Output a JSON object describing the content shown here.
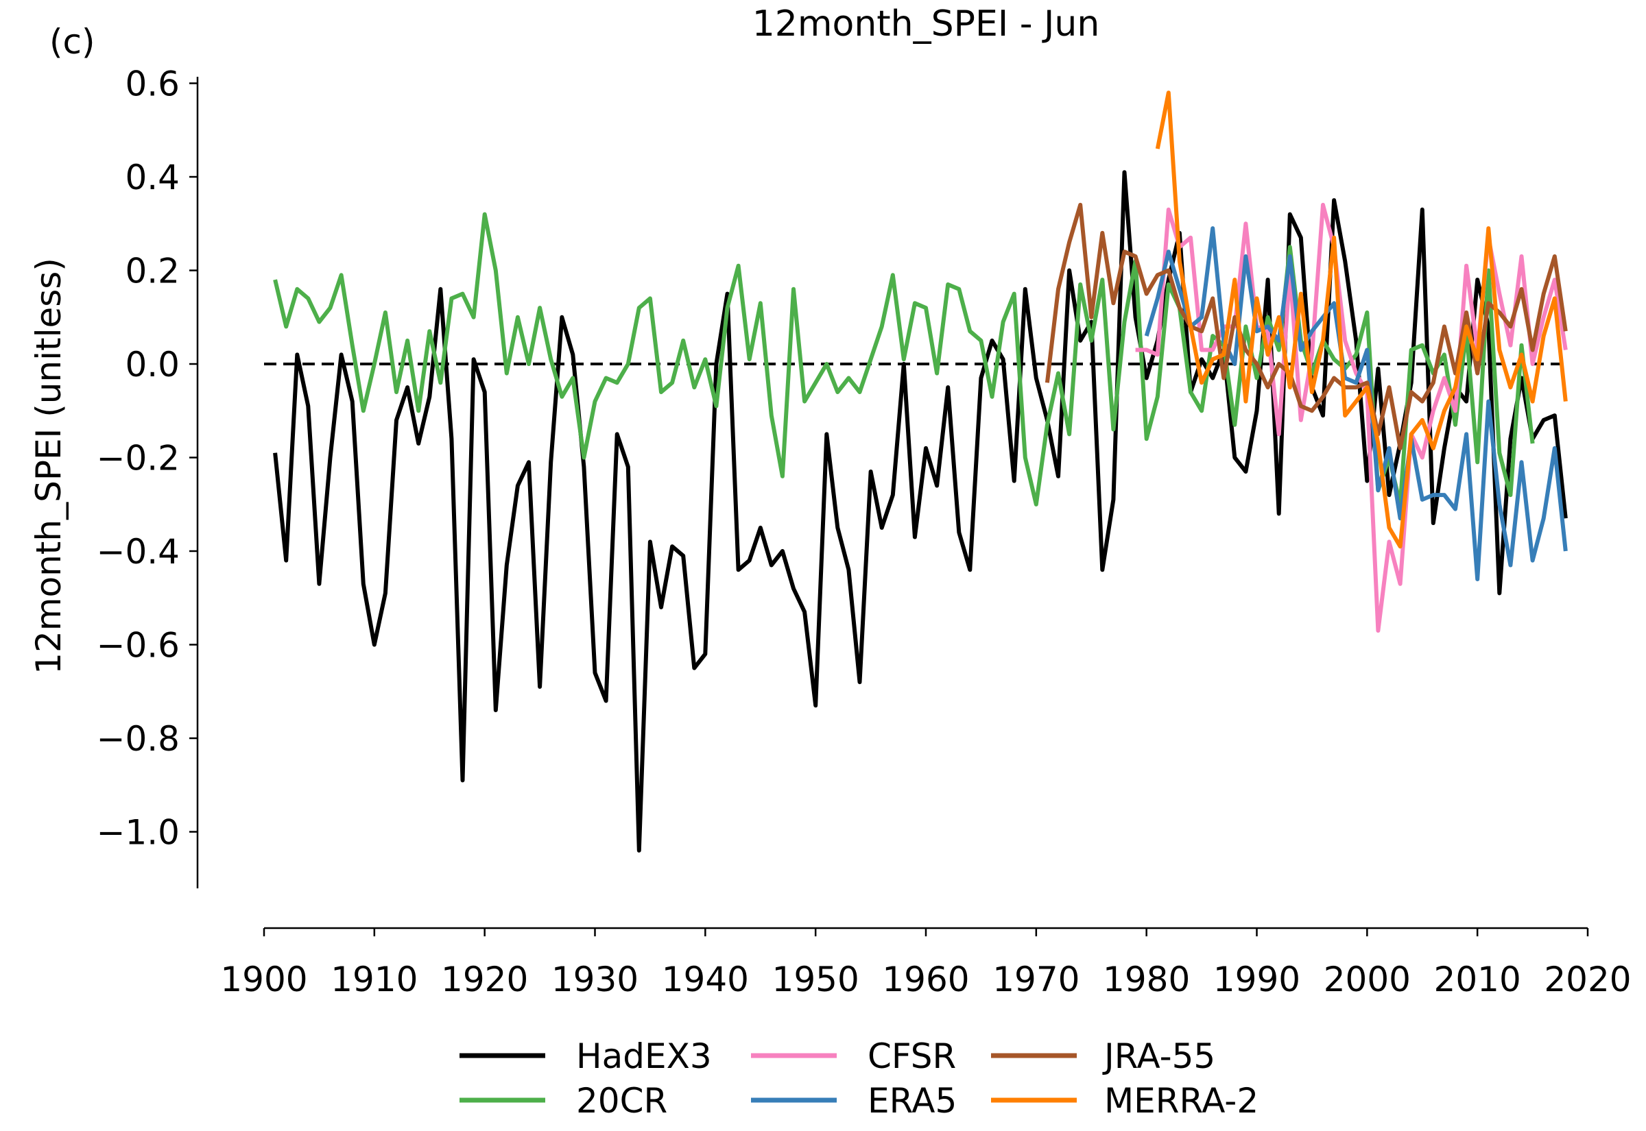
{
  "chart_data": {
    "type": "line",
    "panel_label": "(c)",
    "title": "12month_SPEI - Jun",
    "xlabel": "",
    "ylabel": "12month_SPEI (unitless)",
    "xlim": [
      1900,
      2020
    ],
    "ylim": [
      -1.12,
      0.65
    ],
    "xticks": [
      1900,
      1910,
      1920,
      1930,
      1940,
      1950,
      1960,
      1970,
      1980,
      1990,
      2000,
      2010,
      2020
    ],
    "xtick_labels": [
      "1900",
      "1910",
      "1920",
      "1930",
      "1940",
      "1950",
      "1960",
      "1970",
      "1980",
      "1990",
      "2000",
      "2010",
      "2020"
    ],
    "yticks": [
      0.6,
      0.4,
      0.2,
      0.0,
      -0.2,
      -0.4,
      -0.6,
      -0.8,
      -1.0
    ],
    "ytick_labels": [
      "0.6",
      "0.4",
      "0.2",
      "0.0",
      "−0.2",
      "−0.4",
      "−0.6",
      "−0.8",
      "−1.0"
    ],
    "reference_line": {
      "y": 0.0,
      "style": "dashed",
      "color": "#000000"
    },
    "grid": false,
    "legend_placement": "bottom-center",
    "series": [
      {
        "name": "HadEX3",
        "color": "#000000",
        "start_year": 1901,
        "values": [
          -0.19,
          -0.42,
          0.02,
          -0.09,
          -0.47,
          -0.2,
          0.02,
          -0.08,
          -0.47,
          -0.6,
          -0.49,
          -0.12,
          -0.05,
          -0.17,
          -0.07,
          0.16,
          -0.16,
          -0.89,
          0.01,
          -0.06,
          -0.74,
          -0.43,
          -0.26,
          -0.21,
          -0.69,
          -0.21,
          0.1,
          0.02,
          -0.22,
          -0.66,
          -0.72,
          -0.15,
          -0.22,
          -1.04,
          -0.38,
          -0.52,
          -0.39,
          -0.41,
          -0.65,
          -0.62,
          0.0,
          0.15,
          -0.44,
          -0.42,
          -0.35,
          -0.43,
          -0.4,
          -0.48,
          -0.53,
          -0.73,
          -0.15,
          -0.35,
          -0.44,
          -0.68,
          -0.23,
          -0.35,
          -0.28,
          0.0,
          -0.37,
          -0.18,
          -0.26,
          -0.05,
          -0.36,
          -0.44,
          -0.03,
          0.05,
          0.01,
          -0.25,
          0.16,
          -0.03,
          -0.12,
          -0.24,
          0.2,
          0.05,
          0.09,
          -0.44,
          -0.29,
          0.41,
          0.1,
          -0.03,
          0.05,
          0.18,
          0.28,
          -0.06,
          0.01,
          -0.03,
          0.03,
          -0.2,
          -0.23,
          -0.1,
          0.18,
          -0.32,
          0.32,
          0.27,
          -0.05,
          -0.11,
          0.35,
          0.22,
          0.05,
          -0.25,
          -0.01,
          -0.28,
          -0.17,
          -0.04,
          0.33,
          -0.34,
          -0.18,
          -0.05,
          -0.08,
          0.18,
          0.08,
          -0.49,
          -0.16,
          -0.03,
          -0.16,
          -0.12,
          -0.11,
          -0.33
        ]
      },
      {
        "name": "20CR",
        "color": "#4daf4a",
        "start_year": 1901,
        "values": [
          0.18,
          0.08,
          0.16,
          0.14,
          0.09,
          0.12,
          0.19,
          0.04,
          -0.1,
          0.0,
          0.11,
          -0.06,
          0.05,
          -0.1,
          0.07,
          -0.04,
          0.14,
          0.15,
          0.1,
          0.32,
          0.2,
          -0.02,
          0.1,
          0.0,
          0.12,
          0.01,
          -0.07,
          -0.03,
          -0.2,
          -0.08,
          -0.03,
          -0.04,
          0.0,
          0.12,
          0.14,
          -0.06,
          -0.04,
          0.05,
          -0.05,
          0.01,
          -0.09,
          0.12,
          0.21,
          0.01,
          0.13,
          -0.11,
          -0.24,
          0.16,
          -0.08,
          -0.04,
          0.0,
          -0.06,
          -0.03,
          -0.06,
          0.01,
          0.08,
          0.19,
          0.01,
          0.13,
          0.12,
          -0.02,
          0.17,
          0.16,
          0.07,
          0.05,
          -0.07,
          0.09,
          0.15,
          -0.2,
          -0.3,
          -0.13,
          -0.02,
          -0.15,
          0.17,
          0.05,
          0.18,
          -0.14,
          0.09,
          0.22,
          -0.16,
          -0.07,
          0.17,
          0.12,
          -0.06,
          -0.1,
          0.06,
          0.04,
          -0.13,
          0.08,
          -0.03,
          0.1,
          0.03,
          0.25,
          0.05,
          -0.02,
          0.05,
          0.01,
          -0.01,
          0.02,
          0.11,
          -0.27,
          -0.2,
          -0.3,
          0.03,
          0.04,
          -0.02,
          0.02,
          -0.13,
          0.07,
          -0.21,
          0.2,
          -0.19,
          -0.28,
          0.04,
          -0.17
        ]
      },
      {
        "name": "CFSR",
        "color": "#f781bf",
        "start_year": 1979,
        "values": [
          0.03,
          0.03,
          0.02,
          0.33,
          0.25,
          0.27,
          0.03,
          0.03,
          0.08,
          0.08,
          0.3,
          0.08,
          0.07,
          -0.15,
          0.2,
          -0.12,
          0.02,
          0.34,
          0.25,
          0.05,
          -0.02,
          -0.06,
          -0.57,
          -0.38,
          -0.47,
          -0.15,
          -0.2,
          -0.1,
          -0.03,
          -0.1,
          0.21,
          0.03,
          0.27,
          0.15,
          0.04,
          0.23,
          0.0,
          0.1,
          0.18,
          0.03
        ]
      },
      {
        "name": "ERA5",
        "color": "#377eb8",
        "start_year": 1980,
        "values": [
          0.06,
          0.14,
          0.24,
          0.16,
          0.08,
          0.1,
          0.29,
          0.05,
          0.0,
          0.23,
          0.07,
          0.08,
          0.05,
          0.23,
          0.03,
          0.07,
          0.1,
          0.13,
          -0.03,
          -0.04,
          0.03,
          -0.27,
          -0.18,
          -0.33,
          -0.16,
          -0.29,
          -0.28,
          -0.28,
          -0.31,
          -0.15,
          -0.46,
          -0.08,
          -0.3,
          -0.43,
          -0.21,
          -0.42,
          -0.33,
          -0.18,
          -0.4
        ]
      },
      {
        "name": "JRA-55",
        "color": "#a65628",
        "start_year": 1971,
        "values": [
          -0.04,
          0.16,
          0.26,
          0.34,
          0.1,
          0.28,
          0.13,
          0.24,
          0.23,
          0.15,
          0.19,
          0.2,
          0.12,
          0.08,
          0.07,
          0.14,
          -0.03,
          0.1,
          0.03,
          0.0,
          -0.05,
          0.0,
          -0.02,
          -0.09,
          -0.1,
          -0.07,
          -0.03,
          -0.05,
          -0.05,
          -0.04,
          -0.15,
          -0.05,
          -0.18,
          -0.06,
          -0.08,
          -0.04,
          0.08,
          -0.02,
          0.11,
          -0.02,
          0.13,
          0.11,
          0.08,
          0.16,
          0.03,
          0.15,
          0.23,
          0.07
        ]
      },
      {
        "name": "MERRA-2",
        "color": "#ff7f00",
        "start_year": 1981,
        "values": [
          0.46,
          0.58,
          0.22,
          0.08,
          -0.04,
          0.01,
          0.02,
          0.18,
          -0.08,
          0.14,
          0.02,
          0.1,
          -0.05,
          0.15,
          -0.06,
          0.05,
          0.27,
          -0.11,
          -0.08,
          -0.05,
          -0.17,
          -0.35,
          -0.39,
          -0.15,
          -0.12,
          -0.18,
          -0.1,
          -0.05,
          0.08,
          0.01,
          0.29,
          0.03,
          -0.05,
          0.02,
          -0.08,
          0.06,
          0.14,
          -0.08
        ]
      }
    ],
    "legend_order": [
      "HadEX3",
      "20CR",
      "CFSR",
      "ERA5",
      "JRA-55",
      "MERRA-2"
    ]
  }
}
